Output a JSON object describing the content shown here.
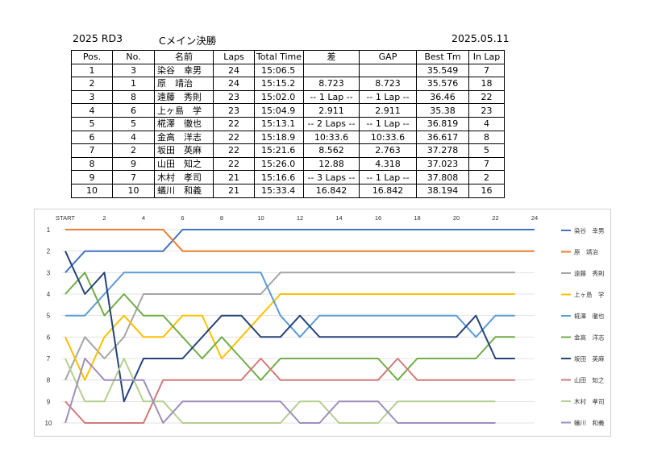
{
  "header": {
    "left": "2025 RD3",
    "title": "Cメイン決勝",
    "date": "2025.05.11"
  },
  "table": {
    "columns": [
      "Pos.",
      "No.",
      "名前",
      "Laps",
      "Total Time",
      "差",
      "GAP",
      "Best Tm",
      "In Lap"
    ],
    "rows": [
      {
        "pos": "1",
        "no": "3",
        "name": "染谷　幸男",
        "laps": "24",
        "total": "15:06.5",
        "diff": "",
        "gap": "",
        "best": "35.549",
        "inlap": "7"
      },
      {
        "pos": "2",
        "no": "1",
        "name": "原　靖治",
        "laps": "24",
        "total": "15:15.2",
        "diff": "8.723",
        "gap": "8.723",
        "best": "35.576",
        "inlap": "18"
      },
      {
        "pos": "3",
        "no": "8",
        "name": "遠藤　秀則",
        "laps": "23",
        "total": "15:02.0",
        "diff": "-- 1 Lap --",
        "gap": "-- 1 Lap --",
        "best": "36.46",
        "inlap": "22"
      },
      {
        "pos": "4",
        "no": "6",
        "name": "上ヶ島　学",
        "laps": "23",
        "total": "15:04.9",
        "diff": "2.911",
        "gap": "2.911",
        "best": "35.38",
        "inlap": "23"
      },
      {
        "pos": "5",
        "no": "5",
        "name": "椛澤　徹也",
        "laps": "22",
        "total": "15:13.1",
        "diff": "-- 2 Laps --",
        "gap": "-- 1 Lap --",
        "best": "36.819",
        "inlap": "4"
      },
      {
        "pos": "6",
        "no": "4",
        "name": "金高　洋志",
        "laps": "22",
        "total": "15:18.9",
        "diff": "10:33.6",
        "gap": "10:33.6",
        "best": "36.617",
        "inlap": "8"
      },
      {
        "pos": "7",
        "no": "2",
        "name": "坂田　英麻",
        "laps": "22",
        "total": "15:21.6",
        "diff": "8.562",
        "gap": "2.763",
        "best": "37.278",
        "inlap": "5"
      },
      {
        "pos": "8",
        "no": "9",
        "name": "山田　知之",
        "laps": "22",
        "total": "15:26.0",
        "diff": "12.88",
        "gap": "4.318",
        "best": "37.023",
        "inlap": "7"
      },
      {
        "pos": "9",
        "no": "7",
        "name": "木村　孝司",
        "laps": "21",
        "total": "15:16.6",
        "diff": "-- 3 Laps --",
        "gap": "-- 1 Lap --",
        "best": "37.808",
        "inlap": "2"
      },
      {
        "pos": "10",
        "no": "10",
        "name": "蟻川　和義",
        "laps": "21",
        "total": "15:33.4",
        "diff": "16.842",
        "gap": "16.842",
        "best": "38.194",
        "inlap": "16"
      }
    ]
  },
  "chart_data": {
    "type": "line",
    "x_tick_labels": [
      "START",
      "2",
      "4",
      "6",
      "8",
      "10",
      "12",
      "14",
      "16",
      "18",
      "20",
      "22",
      "24"
    ],
    "y_tick_labels": [
      "1",
      "2",
      "3",
      "4",
      "5",
      "6",
      "7",
      "8",
      "9",
      "10"
    ],
    "xlim": [
      0,
      24
    ],
    "ylim": [
      1,
      10
    ],
    "y_inverted": true,
    "legend_position": "right",
    "series": [
      {
        "name": "染谷　幸男",
        "color": "#4472c4",
        "values": [
          3,
          2,
          2,
          2,
          2,
          2,
          1,
          1,
          1,
          1,
          1,
          1,
          1,
          1,
          1,
          1,
          1,
          1,
          1,
          1,
          1,
          1,
          1,
          1,
          1
        ]
      },
      {
        "name": "原　靖治",
        "color": "#ed7d31",
        "values": [
          1,
          1,
          1,
          1,
          1,
          1,
          2,
          2,
          2,
          2,
          2,
          2,
          2,
          2,
          2,
          2,
          2,
          2,
          2,
          2,
          2,
          2,
          2,
          2,
          2
        ]
      },
      {
        "name": "遠藤　秀則",
        "color": "#a5a5a5",
        "values": [
          8,
          6,
          7,
          6,
          4,
          4,
          4,
          4,
          4,
          4,
          4,
          3,
          3,
          3,
          3,
          3,
          3,
          3,
          3,
          3,
          3,
          3,
          3,
          3
        ]
      },
      {
        "name": "上ヶ島　学",
        "color": "#ffc000",
        "values": [
          6,
          8,
          6,
          5,
          6,
          6,
          5,
          5,
          7,
          6,
          5,
          4,
          4,
          4,
          4,
          4,
          4,
          4,
          4,
          4,
          4,
          4,
          4,
          4
        ]
      },
      {
        "name": "椛澤　徹也",
        "color": "#5b9bd5",
        "values": [
          5,
          5,
          4,
          3,
          3,
          3,
          3,
          3,
          3,
          3,
          3,
          5,
          6,
          5,
          5,
          5,
          5,
          5,
          5,
          5,
          5,
          6,
          5,
          5
        ]
      },
      {
        "name": "金高　洋志",
        "color": "#70ad47",
        "values": [
          4,
          3,
          5,
          4,
          5,
          5,
          6,
          7,
          6,
          7,
          8,
          7,
          7,
          7,
          7,
          7,
          7,
          8,
          7,
          7,
          7,
          7,
          6,
          6
        ]
      },
      {
        "name": "坂田　英麻",
        "color": "#264478",
        "values": [
          2,
          4,
          3,
          9,
          7,
          7,
          7,
          6,
          5,
          5,
          6,
          6,
          5,
          6,
          6,
          6,
          6,
          6,
          6,
          6,
          6,
          5,
          7,
          7
        ]
      },
      {
        "name": "山田　知之",
        "color": "#d17a7a",
        "values": [
          9,
          10,
          10,
          10,
          10,
          8,
          8,
          8,
          8,
          8,
          7,
          8,
          8,
          8,
          8,
          8,
          8,
          7,
          8,
          8,
          8,
          8,
          8,
          8
        ]
      },
      {
        "name": "木村　孝司",
        "color": "#b4cf8f",
        "values": [
          7,
          9,
          9,
          7,
          9,
          9,
          10,
          10,
          10,
          10,
          10,
          10,
          9,
          9,
          10,
          10,
          10,
          9,
          9,
          9,
          9,
          9,
          9
        ]
      },
      {
        "name": "蟻川　和義",
        "color": "#9e8ebd",
        "values": [
          10,
          7,
          8,
          8,
          8,
          10,
          9,
          9,
          9,
          9,
          9,
          9,
          10,
          10,
          9,
          9,
          9,
          10,
          10,
          10,
          10,
          10,
          10
        ]
      }
    ]
  }
}
